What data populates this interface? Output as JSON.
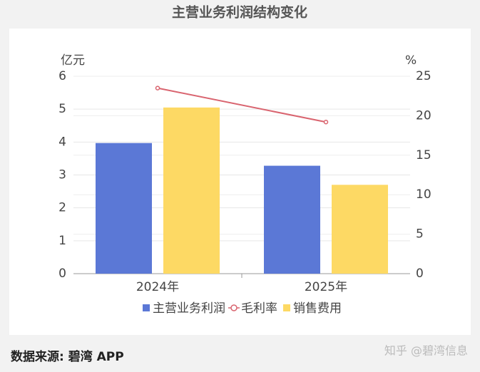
{
  "chart_data": {
    "type": "bar",
    "title": "主营业务利润结构变化",
    "y_label": "亿元",
    "y2_label": "%",
    "categories": [
      "2024年",
      "2025年"
    ],
    "series": [
      {
        "name": "主营业务利润",
        "color": "#5b78d6",
        "values": [
          3.97,
          3.28
        ]
      },
      {
        "name": "毛利率",
        "color": "#d9646f",
        "type": "line",
        "axis": "y2",
        "values": [
          23.5,
          19.2
        ]
      },
      {
        "name": "销售费用",
        "color": "#fdd964",
        "values": [
          5.05,
          2.7
        ]
      }
    ],
    "ylim": [
      0,
      6
    ],
    "yticks": [
      0,
      1,
      2,
      3,
      4,
      5,
      6
    ],
    "y2lim": [
      0,
      25
    ],
    "y2ticks": [
      0,
      5,
      10,
      15,
      20,
      25
    ],
    "grid": true
  },
  "footer": {
    "source": "数据来源: 碧湾 APP",
    "watermark": "知乎 @碧湾信息"
  }
}
